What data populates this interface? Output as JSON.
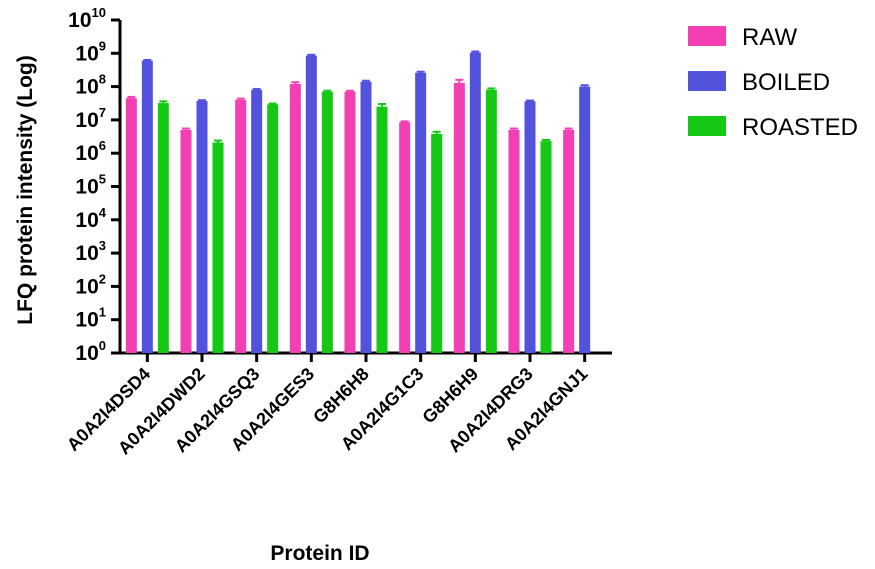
{
  "chart_data": {
    "type": "bar",
    "xlabel": "Protein ID",
    "ylabel": "LFQ protein intensity (Log)",
    "yscale": "log",
    "ylim": [
      1,
      10000000000
    ],
    "y_ticks": [
      {
        "base": "10",
        "exp": "0"
      },
      {
        "base": "10",
        "exp": "1"
      },
      {
        "base": "10",
        "exp": "2"
      },
      {
        "base": "10",
        "exp": "3"
      },
      {
        "base": "10",
        "exp": "4"
      },
      {
        "base": "10",
        "exp": "5"
      },
      {
        "base": "10",
        "exp": "6"
      },
      {
        "base": "10",
        "exp": "7"
      },
      {
        "base": "10",
        "exp": "8"
      },
      {
        "base": "10",
        "exp": "9"
      },
      {
        "base": "10",
        "exp": "10"
      }
    ],
    "categories": [
      "A0A2I4DSD4",
      "A0A2I4DWD2",
      "A0A2I4GSQ3",
      "A0A2I4GES3",
      "G8H6H8",
      "A0A2I4G1C3",
      "G8H6H9",
      "A0A2I4DRG3",
      "A0A2I4GNJ1"
    ],
    "series": [
      {
        "name": "RAW",
        "color": "#f23fb4",
        "values": [
          45000000,
          5000000,
          40000000,
          120000000,
          70000000,
          8500000,
          130000000,
          5000000,
          5000000
        ],
        "errors": [
          4000000,
          500000,
          3500000,
          15000000,
          5000000,
          500000,
          30000000,
          500000,
          500000
        ]
      },
      {
        "name": "BOILED",
        "color": "#5252dd",
        "values": [
          600000000,
          37000000,
          80000000,
          850000000,
          140000000,
          260000000,
          1050000000,
          36000000,
          100000000
        ],
        "errors": [
          30000000,
          2000000,
          5000000,
          50000000,
          10000000,
          20000000,
          80000000,
          2000000,
          10000000
        ]
      },
      {
        "name": "ROASTED",
        "color": "#14c814",
        "values": [
          32000000,
          2100000,
          29000000,
          70000000,
          25000000,
          3800000,
          80000000,
          2300000,
          null
        ],
        "errors": [
          4000000,
          300000,
          2000000,
          5000000,
          5000000,
          600000,
          8000000,
          200000,
          null
        ]
      }
    ],
    "legend_position": "top-right",
    "grid": false
  }
}
